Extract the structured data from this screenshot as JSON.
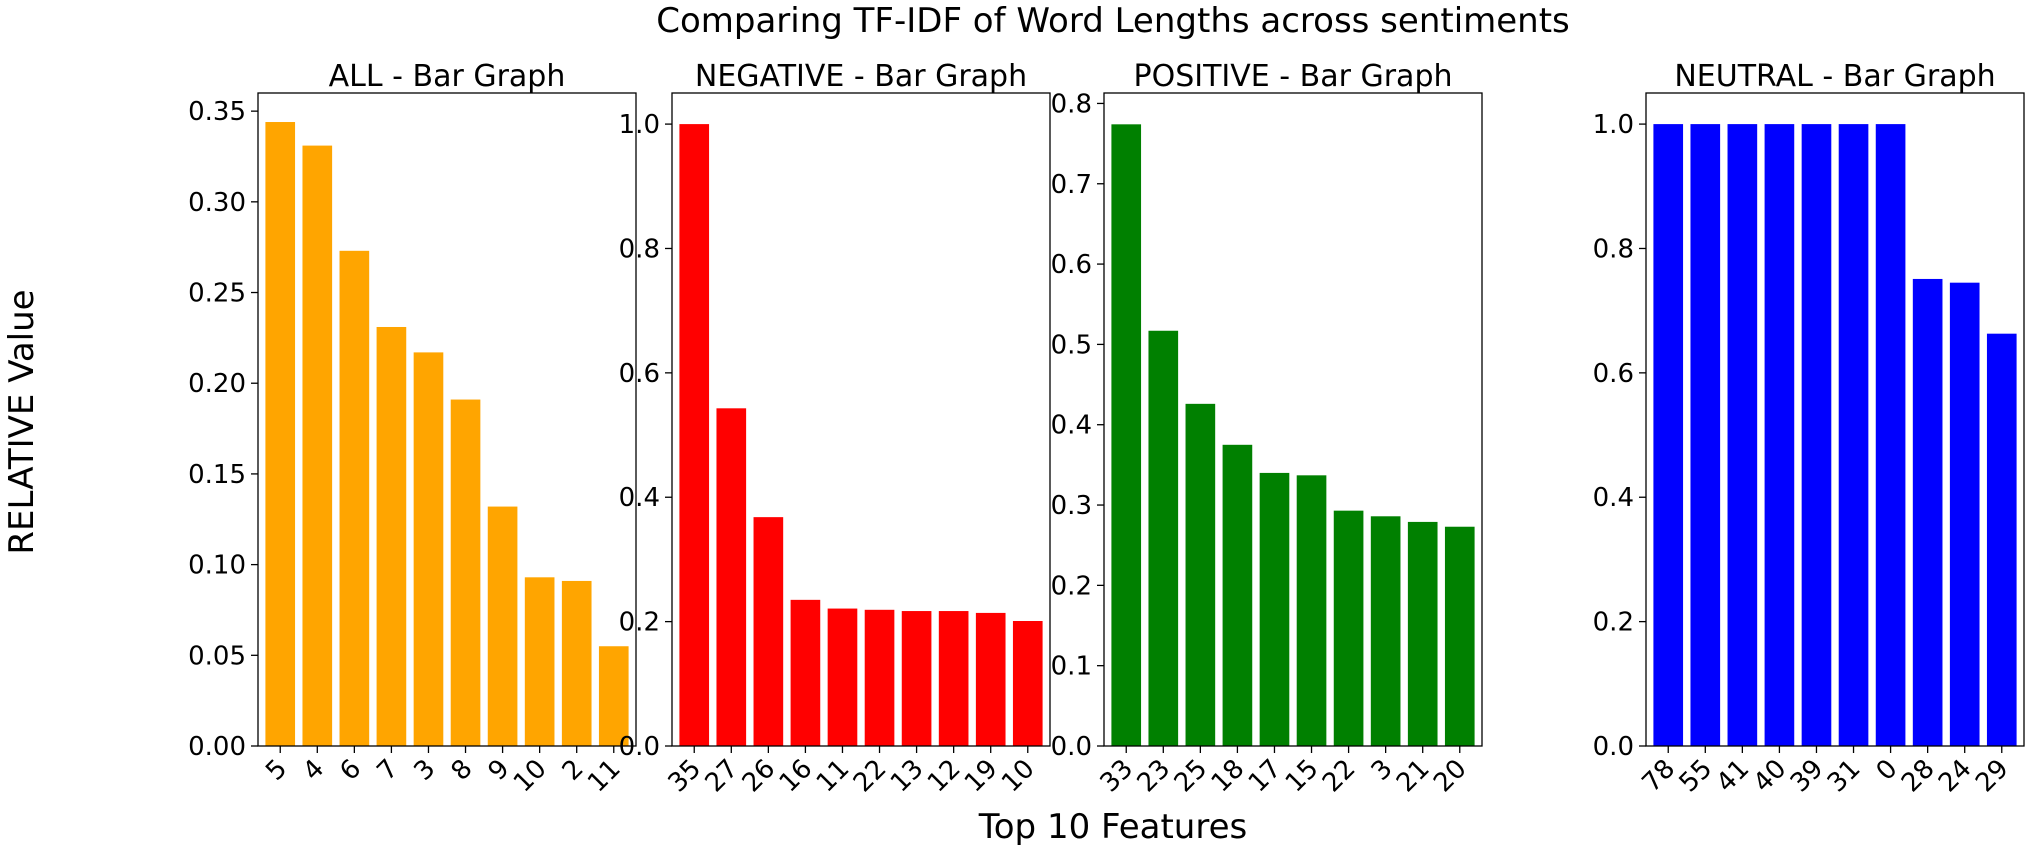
{
  "figure": {
    "suptitle": "Comparing TF-IDF of Word Lengths across sentiments",
    "supxlabel": "Top 10 Features",
    "supylabel": "RELATIVE Value"
  },
  "chart_data": [
    {
      "type": "bar",
      "title": "ALL - Bar Graph",
      "color": "#ffa500",
      "categories": [
        "5",
        "4",
        "6",
        "7",
        "3",
        "8",
        "9",
        "10",
        "2",
        "11"
      ],
      "values": [
        0.344,
        0.331,
        0.273,
        0.231,
        0.217,
        0.191,
        0.132,
        0.093,
        0.091,
        0.055
      ],
      "ylim": [
        0,
        0.36
      ],
      "yticks": [
        0.0,
        0.05,
        0.1,
        0.15,
        0.2,
        0.25,
        0.3,
        0.35
      ],
      "ytick_labels": [
        "0.00",
        "0.05",
        "0.10",
        "0.15",
        "0.20",
        "0.25",
        "0.30",
        "0.35"
      ]
    },
    {
      "type": "bar",
      "title": "NEGATIVE - Bar Graph",
      "color": "#ff0000",
      "categories": [
        "35",
        "27",
        "26",
        "16",
        "11",
        "22",
        "13",
        "12",
        "19",
        "10"
      ],
      "values": [
        1.0,
        0.543,
        0.368,
        0.235,
        0.221,
        0.219,
        0.217,
        0.217,
        0.214,
        0.201
      ],
      "ylim": [
        0,
        1.05
      ],
      "yticks": [
        0.0,
        0.2,
        0.4,
        0.6,
        0.8,
        1.0
      ],
      "ytick_labels": [
        "0.0",
        "0.2",
        "0.4",
        "0.6",
        "0.8",
        "1.0"
      ]
    },
    {
      "type": "bar",
      "title": "POSITIVE - Bar Graph",
      "color": "#008000",
      "categories": [
        "33",
        "23",
        "25",
        "18",
        "17",
        "15",
        "22",
        "3",
        "21",
        "20"
      ],
      "values": [
        0.774,
        0.517,
        0.426,
        0.375,
        0.34,
        0.337,
        0.293,
        0.286,
        0.279,
        0.273
      ],
      "ylim": [
        0,
        0.813
      ],
      "yticks": [
        0.0,
        0.1,
        0.2,
        0.3,
        0.4,
        0.5,
        0.6,
        0.7,
        0.8
      ],
      "ytick_labels": [
        "0.0",
        "0.1",
        "0.2",
        "0.3",
        "0.4",
        "0.5",
        "0.6",
        "0.7",
        "0.8"
      ]
    },
    {
      "type": "bar",
      "title": "NEUTRAL - Bar Graph",
      "color": "#0000ff",
      "categories": [
        "78",
        "55",
        "41",
        "40",
        "39",
        "31",
        "0",
        "28",
        "24",
        "29"
      ],
      "values": [
        1.0,
        1.0,
        1.0,
        1.0,
        1.0,
        1.0,
        1.0,
        0.751,
        0.745,
        0.663
      ],
      "ylim": [
        0,
        1.05
      ],
      "yticks": [
        0.0,
        0.2,
        0.4,
        0.6,
        0.8,
        1.0
      ],
      "ytick_labels": [
        "0.0",
        "0.2",
        "0.4",
        "0.6",
        "0.8",
        "1.0"
      ]
    }
  ]
}
